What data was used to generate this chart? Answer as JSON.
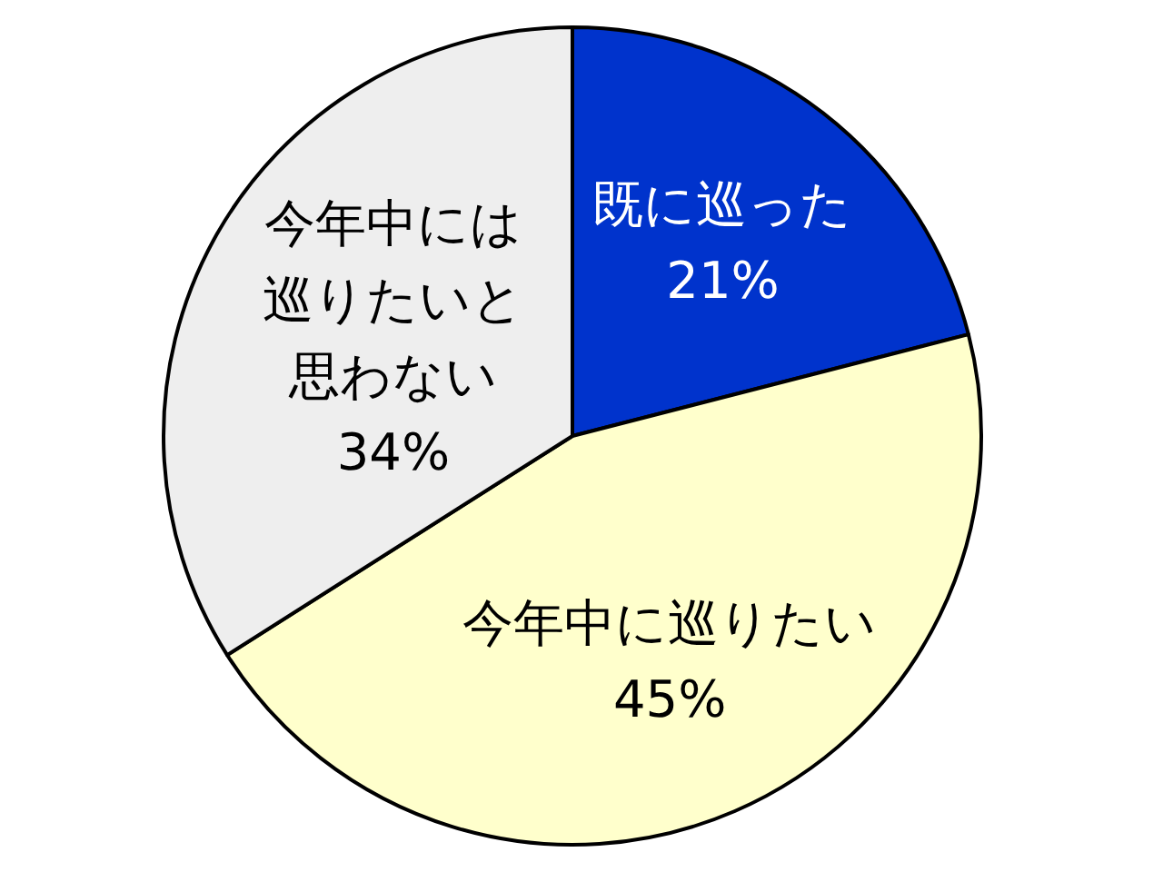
{
  "chart_data": {
    "type": "pie",
    "categories": [
      "既に巡った",
      "今年中に巡りたい",
      "今年中には巡りたいと思わない"
    ],
    "values": [
      21,
      45,
      34
    ],
    "value_labels": [
      "21%",
      "45%",
      "34%"
    ],
    "colors": [
      "#0033cc",
      "#ffffcc",
      "#eeeeee"
    ]
  }
}
